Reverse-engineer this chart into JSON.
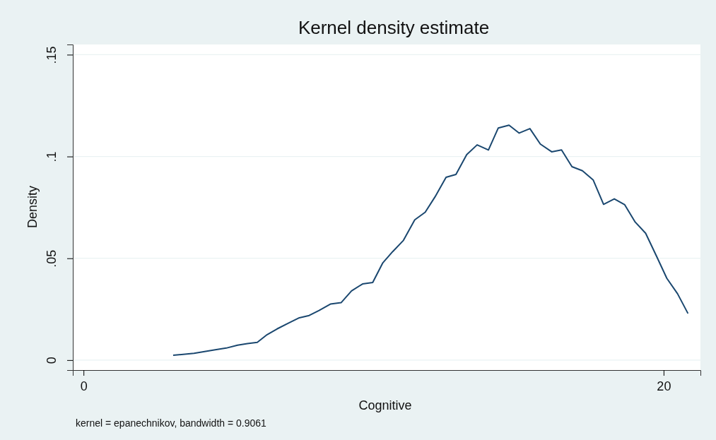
{
  "chart_data": {
    "type": "line",
    "title": "Kernel density estimate",
    "xlabel": "Cognitive",
    "ylabel": "Density",
    "annotations": [
      "kernel = epanechnikov, bandwidth = 0.9061"
    ],
    "xlim": [
      -0.37,
      21.27
    ],
    "xticks": [
      0,
      20
    ],
    "ylim": [
      -0.0049,
      0.155
    ],
    "yticks": [
      {
        "value": 0,
        "label": "0"
      },
      {
        "value": 0.05,
        "label": ".05"
      },
      {
        "value": 0.1,
        "label": ".1"
      },
      {
        "value": 0.15,
        "label": ".15"
      }
    ],
    "grid": "y",
    "series": [
      {
        "color": "#1a476f",
        "x": [
          3.09,
          3.81,
          4.54,
          4.92,
          5.31,
          5.65,
          5.99,
          6.33,
          6.67,
          7.06,
          7.44,
          7.78,
          8.12,
          8.51,
          8.88,
          9.24,
          9.62,
          9.97,
          10.32,
          10.66,
          11.03,
          11.42,
          11.78,
          12.12,
          12.5,
          12.84,
          13.21,
          13.57,
          13.96,
          14.3,
          14.67,
          15.02,
          15.39,
          15.75,
          16.14,
          16.48,
          16.84,
          17.2,
          17.57,
          17.93,
          18.3,
          18.66,
          19.02,
          19.38,
          19.75,
          20.11,
          20.48,
          20.84
        ],
        "values": [
          0.0024,
          0.0033,
          0.0051,
          0.0059,
          0.0073,
          0.0081,
          0.0087,
          0.0125,
          0.0153,
          0.0181,
          0.0208,
          0.0219,
          0.0244,
          0.0275,
          0.0282,
          0.034,
          0.0374,
          0.0381,
          0.0478,
          0.0533,
          0.0588,
          0.0689,
          0.0726,
          0.0802,
          0.0898,
          0.0912,
          0.1009,
          0.1057,
          0.1032,
          0.114,
          0.1154,
          0.1115,
          0.1137,
          0.1061,
          0.1023,
          0.1032,
          0.095,
          0.093,
          0.0885,
          0.0765,
          0.0792,
          0.0763,
          0.0678,
          0.0623,
          0.0512,
          0.0402,
          0.0326,
          0.0229
        ]
      }
    ]
  }
}
